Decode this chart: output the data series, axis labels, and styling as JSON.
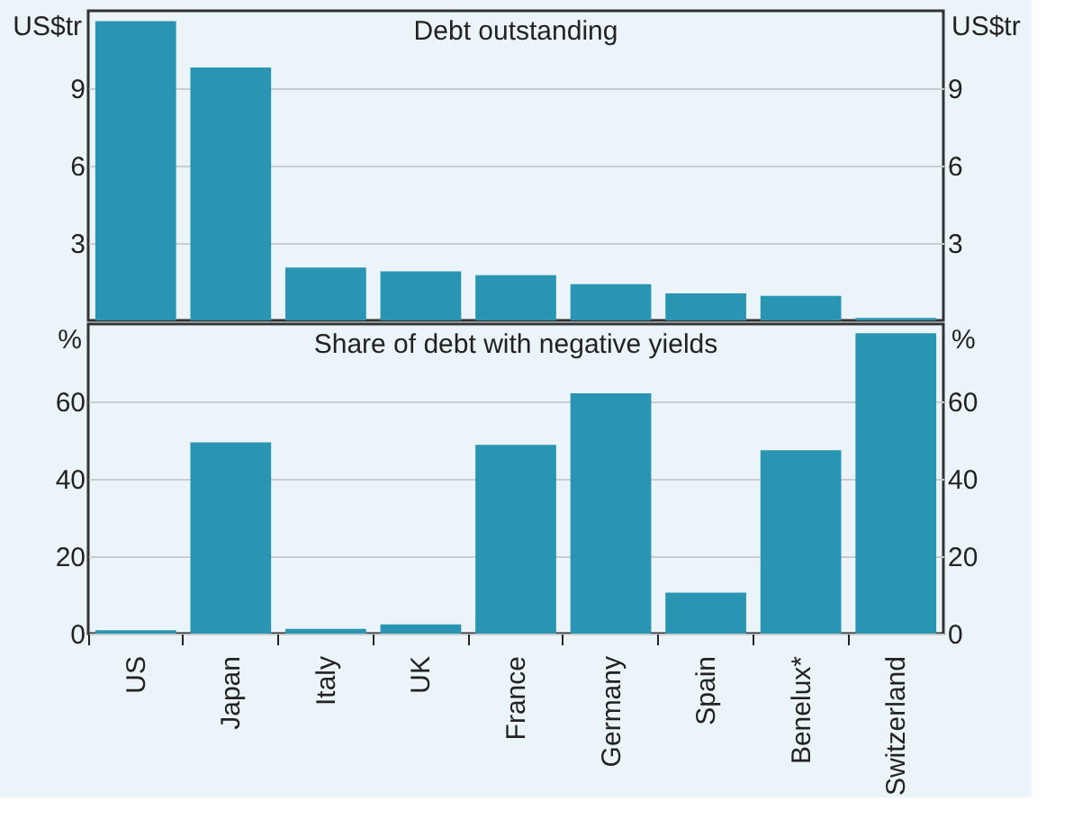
{
  "chart_data": [
    {
      "type": "bar",
      "title": "Debt outstanding",
      "ylabel": "US$tr",
      "y2label": "US$tr",
      "categories": [
        null,
        null,
        null,
        null,
        null,
        null,
        null,
        null,
        null
      ],
      "values": [
        11.6,
        9.8,
        2.05,
        1.9,
        1.75,
        1.4,
        1.05,
        0.95,
        0.1
      ],
      "color": "#2a95b3",
      "ylim": [
        0,
        12
      ],
      "yticks": [
        3,
        6,
        9
      ],
      "y2lim": [
        0,
        12
      ],
      "y2ticks": [
        3,
        6,
        9
      ],
      "grid": "y",
      "tick_labels": "y"
    },
    {
      "type": "bar",
      "title": "Share of debt with negative yields",
      "ylabel": "%",
      "y2label": "%",
      "categories": [
        "US",
        "Japan",
        "Italy",
        "UK",
        "France",
        "Germany",
        "Spain",
        "Benelux*",
        "Switzerland"
      ],
      "values": [
        0.9,
        49.4,
        1.2,
        2.4,
        48.8,
        62.1,
        10.6,
        47.4,
        77.6
      ],
      "color": "#2a95b3",
      "ylim": [
        0,
        80
      ],
      "yticks": [
        0,
        20,
        40,
        60
      ],
      "y2lim": [
        0,
        80
      ],
      "y2ticks": [
        0,
        20,
        40,
        60
      ],
      "grid": "y"
    }
  ]
}
